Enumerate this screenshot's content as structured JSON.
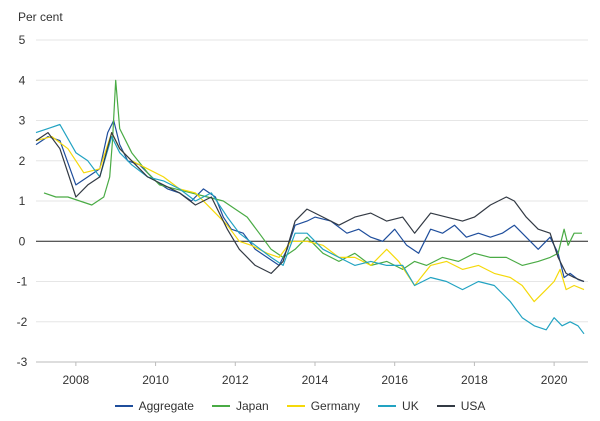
{
  "chart_data": {
    "type": "line",
    "ylabel": "Per cent",
    "ylim": [
      -3,
      5
    ],
    "yticks": [
      "5",
      "4",
      "3",
      "2",
      "1",
      "0",
      "-1",
      "-2",
      "-3"
    ],
    "xlim": [
      2007.0,
      2020.85
    ],
    "xticks": [
      "2008",
      "2010",
      "2012",
      "2014",
      "2016",
      "2018",
      "2020"
    ],
    "grid": true,
    "legend_position": "bottom",
    "series": [
      {
        "name": "Aggregate",
        "color": "#1f4e9c",
        "x": [
          2007.0,
          2007.3,
          2007.6,
          2008.0,
          2008.3,
          2008.6,
          2008.8,
          2008.95,
          2009.1,
          2009.3,
          2009.6,
          2010.0,
          2010.3,
          2010.6,
          2010.9,
          2011.2,
          2011.5,
          2011.7,
          2011.9,
          2012.2,
          2012.5,
          2012.8,
          2013.1,
          2013.3,
          2013.5,
          2013.8,
          2014.0,
          2014.4,
          2014.8,
          2015.1,
          2015.4,
          2015.7,
          2016.0,
          2016.3,
          2016.6,
          2016.9,
          2017.2,
          2017.5,
          2017.8,
          2018.1,
          2018.4,
          2018.7,
          2019.0,
          2019.3,
          2019.6,
          2019.9,
          2020.1,
          2020.25,
          2020.4,
          2020.6,
          2020.75
        ],
        "y": [
          2.4,
          2.6,
          2.5,
          1.4,
          1.6,
          1.8,
          2.7,
          3.0,
          2.4,
          2.0,
          1.9,
          1.5,
          1.3,
          1.2,
          1.0,
          1.3,
          1.1,
          0.6,
          0.3,
          0.2,
          -0.2,
          -0.4,
          -0.6,
          -0.2,
          0.4,
          0.5,
          0.6,
          0.5,
          0.2,
          0.3,
          0.1,
          0.0,
          0.3,
          -0.1,
          -0.3,
          0.3,
          0.2,
          0.4,
          0.1,
          0.2,
          0.1,
          0.2,
          0.4,
          0.1,
          -0.2,
          0.1,
          -0.3,
          -0.9,
          -0.8,
          -0.95,
          -1.0
        ]
      },
      {
        "name": "Japan",
        "color": "#4aab45",
        "x": [
          2007.2,
          2007.5,
          2007.8,
          2008.1,
          2008.4,
          2008.7,
          2008.85,
          2008.92,
          2009.0,
          2009.1,
          2009.4,
          2009.8,
          2010.1,
          2010.5,
          2010.9,
          2011.3,
          2011.7,
          2012.0,
          2012.3,
          2012.6,
          2012.9,
          2013.2,
          2013.5,
          2013.8,
          2014.2,
          2014.6,
          2015.0,
          2015.4,
          2015.8,
          2016.2,
          2016.5,
          2016.8,
          2017.2,
          2017.6,
          2018.0,
          2018.4,
          2018.8,
          2019.2,
          2019.6,
          2019.9,
          2020.1,
          2020.25,
          2020.35,
          2020.5,
          2020.7
        ],
        "y": [
          1.2,
          1.1,
          1.1,
          1.0,
          0.9,
          1.1,
          1.6,
          2.5,
          4.0,
          2.8,
          2.2,
          1.7,
          1.4,
          1.3,
          1.2,
          1.1,
          1.0,
          0.8,
          0.6,
          0.2,
          -0.2,
          -0.4,
          -0.2,
          0.1,
          -0.3,
          -0.5,
          -0.3,
          -0.6,
          -0.5,
          -0.7,
          -0.5,
          -0.6,
          -0.4,
          -0.5,
          -0.3,
          -0.4,
          -0.4,
          -0.6,
          -0.5,
          -0.4,
          -0.3,
          0.3,
          -0.1,
          0.2,
          0.2
        ]
      },
      {
        "name": "Germany",
        "color": "#f5d90a",
        "x": [
          2007.0,
          2007.4,
          2007.8,
          2008.2,
          2008.6,
          2008.9,
          2009.1,
          2009.4,
          2009.8,
          2010.2,
          2010.6,
          2011.0,
          2011.4,
          2011.8,
          2012.1,
          2012.4,
          2012.8,
          2013.1,
          2013.4,
          2013.8,
          2014.2,
          2014.6,
          2015.0,
          2015.4,
          2015.8,
          2016.1,
          2016.5,
          2016.9,
          2017.3,
          2017.7,
          2018.1,
          2018.5,
          2018.9,
          2019.2,
          2019.5,
          2019.8,
          2020.0,
          2020.15,
          2020.3,
          2020.5,
          2020.75
        ],
        "y": [
          2.5,
          2.6,
          2.3,
          1.7,
          1.8,
          2.7,
          2.3,
          2.0,
          1.8,
          1.6,
          1.3,
          1.2,
          0.8,
          0.4,
          0.0,
          -0.1,
          -0.3,
          -0.4,
          0.0,
          0.0,
          -0.1,
          -0.4,
          -0.4,
          -0.6,
          -0.2,
          -0.5,
          -1.1,
          -0.6,
          -0.5,
          -0.7,
          -0.6,
          -0.8,
          -0.9,
          -1.1,
          -1.5,
          -1.2,
          -1.0,
          -0.7,
          -1.2,
          -1.1,
          -1.2
        ]
      },
      {
        "name": "UK",
        "color": "#22a3c2",
        "x": [
          2007.0,
          2007.3,
          2007.6,
          2008.0,
          2008.3,
          2008.6,
          2008.9,
          2009.1,
          2009.4,
          2009.8,
          2010.2,
          2010.6,
          2011.0,
          2011.4,
          2011.8,
          2012.1,
          2012.5,
          2012.9,
          2013.2,
          2013.5,
          2013.8,
          2014.2,
          2014.6,
          2015.0,
          2015.4,
          2015.8,
          2016.2,
          2016.5,
          2016.9,
          2017.3,
          2017.7,
          2018.1,
          2018.5,
          2018.9,
          2019.2,
          2019.5,
          2019.8,
          2020.0,
          2020.2,
          2020.4,
          2020.6,
          2020.75
        ],
        "y": [
          2.7,
          2.8,
          2.9,
          2.2,
          2.0,
          1.6,
          2.6,
          2.2,
          1.9,
          1.6,
          1.5,
          1.3,
          1.0,
          1.2,
          0.6,
          0.2,
          -0.1,
          -0.4,
          -0.6,
          0.2,
          0.2,
          -0.2,
          -0.4,
          -0.6,
          -0.5,
          -0.6,
          -0.6,
          -1.1,
          -0.9,
          -1.0,
          -1.2,
          -1.0,
          -1.1,
          -1.5,
          -1.9,
          -2.1,
          -2.2,
          -1.9,
          -2.1,
          -2.0,
          -2.1,
          -2.3
        ]
      },
      {
        "name": "USA",
        "color": "#333a44",
        "x": [
          2007.0,
          2007.3,
          2007.6,
          2008.0,
          2008.3,
          2008.6,
          2008.9,
          2009.1,
          2009.4,
          2009.8,
          2010.2,
          2010.6,
          2011.0,
          2011.4,
          2011.8,
          2012.1,
          2012.5,
          2012.9,
          2013.2,
          2013.5,
          2013.8,
          2014.2,
          2014.6,
          2015.0,
          2015.4,
          2015.8,
          2016.2,
          2016.5,
          2016.9,
          2017.3,
          2017.7,
          2018.0,
          2018.4,
          2018.8,
          2019.0,
          2019.3,
          2019.6,
          2019.9,
          2020.1,
          2020.3,
          2020.5,
          2020.75
        ],
        "y": [
          2.5,
          2.7,
          2.3,
          1.1,
          1.4,
          1.6,
          2.7,
          2.3,
          2.0,
          1.6,
          1.4,
          1.2,
          0.9,
          1.1,
          0.3,
          -0.2,
          -0.6,
          -0.8,
          -0.5,
          0.5,
          0.8,
          0.6,
          0.4,
          0.6,
          0.7,
          0.5,
          0.6,
          0.2,
          0.7,
          0.6,
          0.5,
          0.6,
          0.9,
          1.1,
          1.0,
          0.6,
          0.3,
          0.2,
          -0.4,
          -0.8,
          -0.9,
          -1.0
        ]
      }
    ]
  }
}
